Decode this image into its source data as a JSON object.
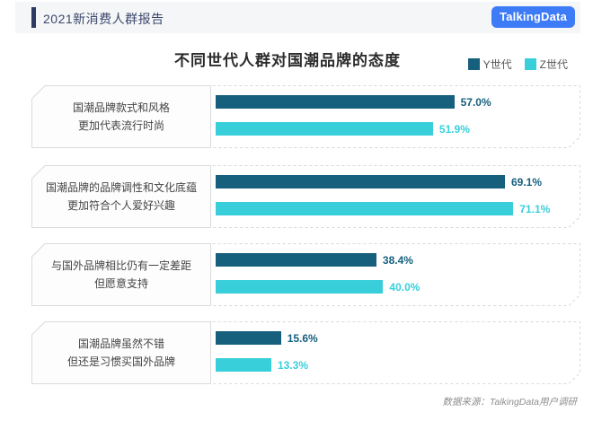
{
  "header": {
    "report_title": "2021新消费人群报告",
    "logo_text": "TalkingData"
  },
  "colors": {
    "header_bg": "#F5F6F8",
    "header_accent": "#2C3A64",
    "header_text": "#3C486B",
    "logo_blue": "#3D7BF7",
    "y_series": "#16607E",
    "z_series": "#38CFDB"
  },
  "chart_data": {
    "type": "bar",
    "orientation": "horizontal",
    "title": "不同世代人群对国潮品牌的态度",
    "legend_position": "top-right",
    "grid": false,
    "value_unit": "%",
    "xlim": [
      0,
      85
    ],
    "categories": [
      {
        "line1": "国潮品牌款式和风格",
        "line2": "更加代表流行时尚"
      },
      {
        "line1": "国潮品牌的品牌调性和文化底蕴",
        "line2": "更加符合个人爱好兴趣"
      },
      {
        "line1": "与国外品牌相比仍有一定差距",
        "line2": "但愿意支持"
      },
      {
        "line1": "国潮品牌虽然不错",
        "line2": "但还是习惯买国外品牌"
      }
    ],
    "series": [
      {
        "name": "Y世代",
        "color": "#16607E",
        "values": [
          57.0,
          69.1,
          38.4,
          15.6
        ],
        "labels": [
          "57.0%",
          "69.1%",
          "38.4%",
          "15.6%"
        ]
      },
      {
        "name": "Z世代",
        "color": "#38CFDB",
        "values": [
          51.9,
          71.1,
          40.0,
          13.3
        ],
        "labels": [
          "51.9%",
          "71.1%",
          "40.0%",
          "13.3%"
        ]
      }
    ]
  },
  "footer": {
    "source_text": "数据来源：TalkingData用户调研"
  }
}
